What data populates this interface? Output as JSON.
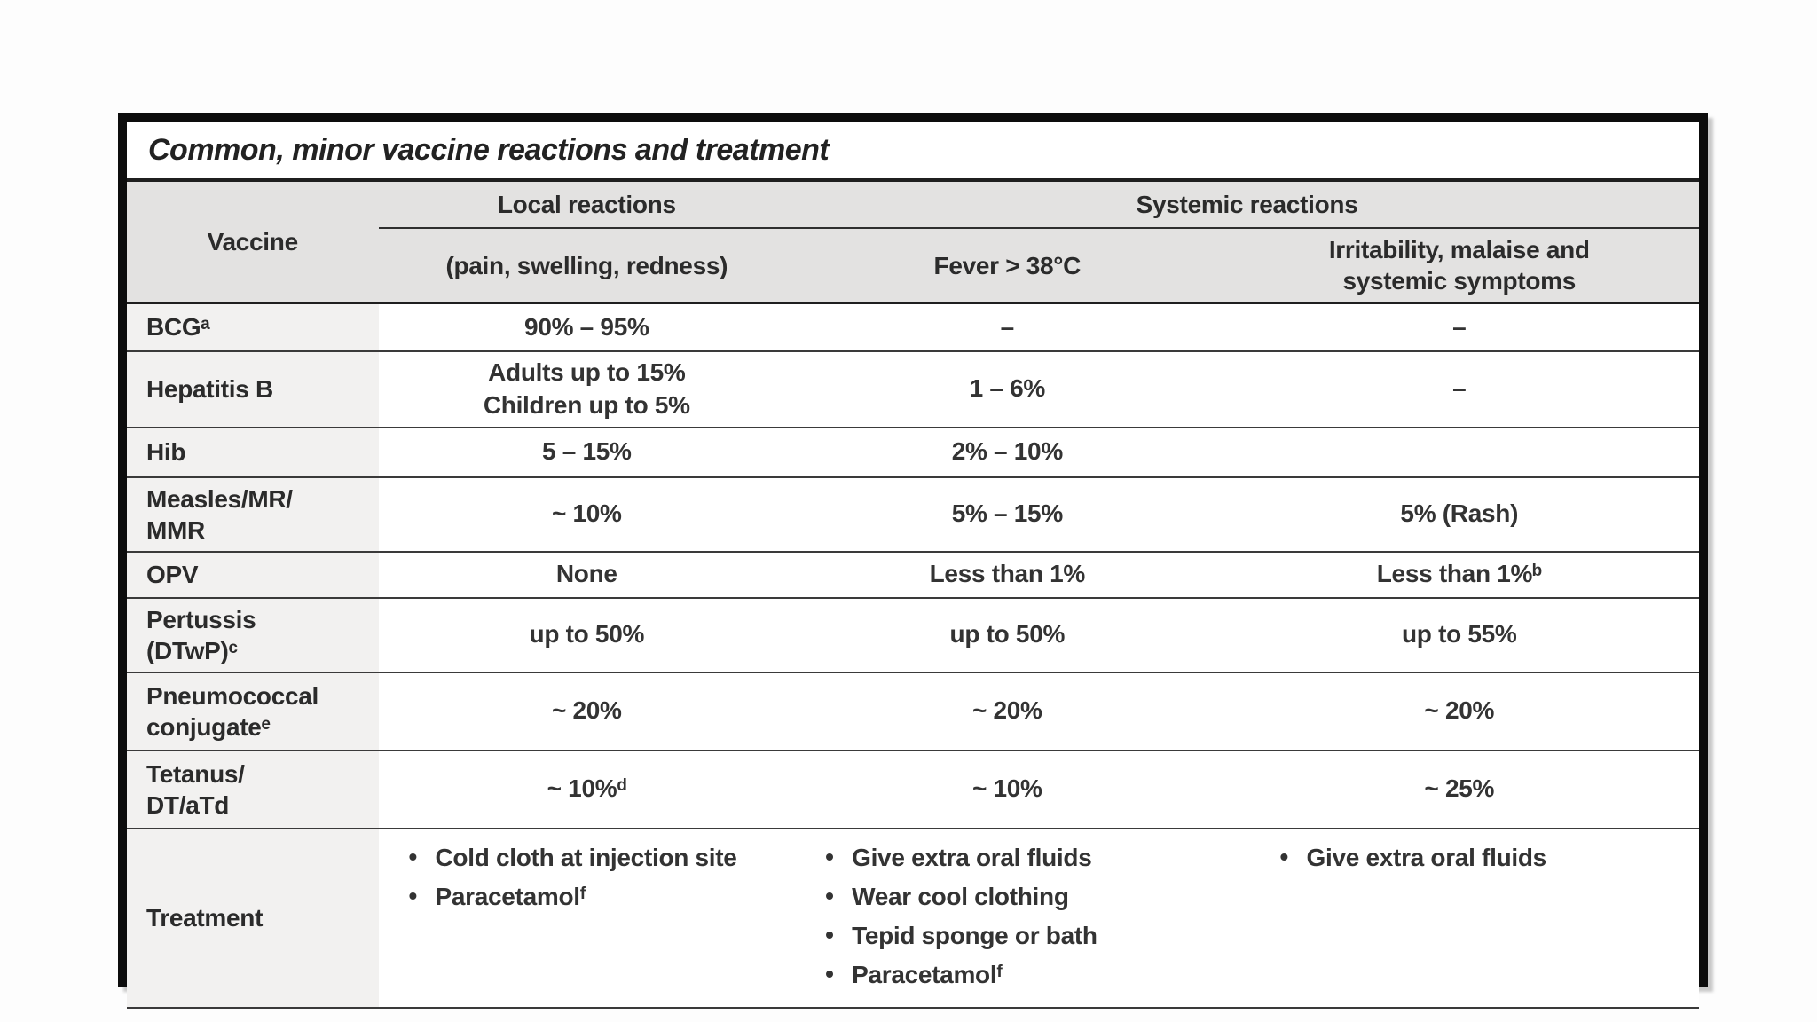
{
  "title": "Common, minor vaccine reactions and treatment",
  "header": {
    "vaccine": "Vaccine",
    "local_group": "Local reactions",
    "systemic_group": "Systemic reactions",
    "local_sub": "(pain, swelling, redness)",
    "fever_sub": "Fever > 38°C",
    "irritability_sub": "Irritability, malaise and\nsystemic symptoms"
  },
  "rows": [
    {
      "vaccine": "BCGᵃ",
      "local": "90% – 95%",
      "fever": "–",
      "irritability": "–"
    },
    {
      "vaccine": "Hepatitis B",
      "local": "Adults up to 15%\nChildren up to 5%",
      "fever": "1 – 6%",
      "irritability": "–"
    },
    {
      "vaccine": "Hib",
      "local": "5 – 15%",
      "fever": "2% – 10%",
      "irritability": ""
    },
    {
      "vaccine": "Measles/MR/\nMMR",
      "local": "~ 10%",
      "fever": "5% – 15%",
      "irritability": "5% (Rash)"
    },
    {
      "vaccine": "OPV",
      "local": "None",
      "fever": "Less than 1%",
      "irritability": "Less than 1%ᵇ"
    },
    {
      "vaccine": "Pertussis\n(DTwP)ᶜ",
      "local": "up to 50%",
      "fever": "up to 50%",
      "irritability": "up to 55%"
    },
    {
      "vaccine": "Pneumococcal\nconjugateᵉ",
      "local": "~ 20%",
      "fever": "~ 20%",
      "irritability": "~ 20%"
    },
    {
      "vaccine": "Tetanus/\nDT/aTd",
      "local": "~ 10%ᵈ",
      "fever": "~ 10%",
      "irritability": "~ 25%"
    }
  ],
  "treatment": {
    "label": "Treatment",
    "local": [
      "Cold cloth at injection site",
      "Paracetamolᶠ"
    ],
    "fever": [
      "Give extra oral fluids",
      "Wear cool clothing",
      "Tepid sponge or bath",
      "Paracetamolᶠ"
    ],
    "irritability": [
      "Give extra oral fluids"
    ]
  },
  "colors": {
    "header_bg": "#e3e2e1",
    "vaccine_col_bg": "#f2f1f0",
    "frame_border": "#0d0d0d",
    "rule": "#3a3a3a",
    "text": "#2e2e2e"
  }
}
